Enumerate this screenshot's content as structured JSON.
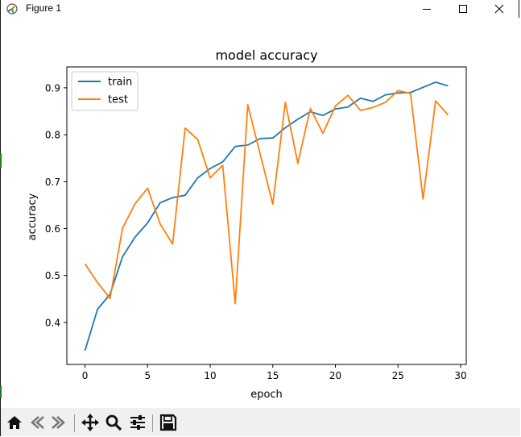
{
  "window": {
    "title": "Figure 1",
    "minimize_icon": "minimize-icon",
    "maximize_icon": "maximize-icon",
    "close_icon": "close-icon"
  },
  "toolbar": {
    "buttons": [
      {
        "name": "home-icon"
      },
      {
        "name": "back-icon"
      },
      {
        "name": "forward-icon"
      },
      {
        "name": "pan-icon"
      },
      {
        "name": "zoom-icon"
      },
      {
        "name": "subplots-icon"
      },
      {
        "name": "save-icon"
      }
    ]
  },
  "colors": {
    "train": "#1f77b4",
    "test": "#ff7f0e",
    "toolbar_bg": "#f0f0f0"
  },
  "chart_data": {
    "type": "line",
    "title": "model accuracy",
    "xlabel": "epoch",
    "ylabel": "accuracy",
    "xlim": [
      -1.45,
      30.45
    ],
    "ylim": [
      0.3105,
      0.9445
    ],
    "xticks": [
      0,
      5,
      10,
      15,
      20,
      25,
      30
    ],
    "yticks": [
      0.4,
      0.5,
      0.6,
      0.7,
      0.8,
      0.9
    ],
    "legend_position": "upper left",
    "grid": false,
    "series": [
      {
        "name": "train",
        "color": "#1f77b4",
        "x": [
          0,
          1,
          2,
          3,
          4,
          5,
          6,
          7,
          8,
          9,
          10,
          11,
          12,
          13,
          14,
          15,
          16,
          17,
          18,
          19,
          20,
          21,
          22,
          23,
          24,
          25,
          26,
          27,
          28,
          29
        ],
        "values": [
          0.34,
          0.428,
          0.46,
          0.54,
          0.582,
          0.612,
          0.655,
          0.666,
          0.671,
          0.708,
          0.728,
          0.742,
          0.775,
          0.778,
          0.792,
          0.793,
          0.815,
          0.833,
          0.849,
          0.841,
          0.855,
          0.859,
          0.878,
          0.871,
          0.885,
          0.889,
          0.89,
          0.901,
          0.912,
          0.904
        ]
      },
      {
        "name": "test",
        "color": "#ff7f0e",
        "x": [
          0,
          1,
          2,
          3,
          4,
          5,
          6,
          7,
          8,
          9,
          10,
          11,
          12,
          13,
          14,
          15,
          16,
          17,
          18,
          19,
          20,
          21,
          22,
          23,
          24,
          25,
          26,
          27,
          28,
          29
        ],
        "values": [
          0.525,
          0.485,
          0.451,
          0.601,
          0.653,
          0.686,
          0.61,
          0.567,
          0.814,
          0.79,
          0.708,
          0.735,
          0.44,
          0.864,
          0.758,
          0.652,
          0.869,
          0.739,
          0.856,
          0.803,
          0.861,
          0.884,
          0.852,
          0.858,
          0.869,
          0.894,
          0.888,
          0.663,
          0.872,
          0.842
        ]
      }
    ]
  }
}
